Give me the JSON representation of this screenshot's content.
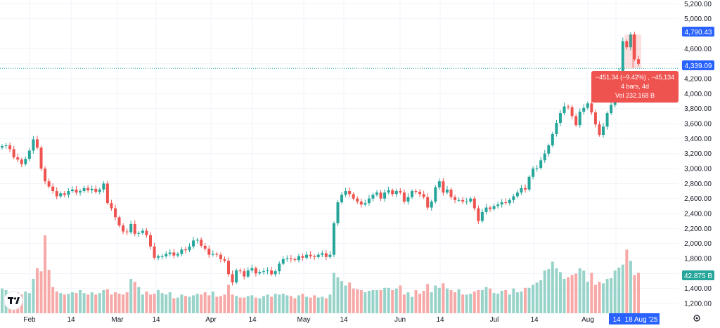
{
  "chart_data": {
    "type": "candlestick",
    "y_ticks": [
      "1,200.00",
      "1,400.00",
      "1,600.00",
      "1,800.00",
      "2,000.00",
      "2,200.00",
      "2,400.00",
      "2,600.00",
      "2,800.00",
      "3,000.00",
      "3,200.00",
      "3,400.00",
      "3,600.00",
      "3,800.00",
      "4,000.00",
      "4,200.00",
      "4,400.00",
      "4,600.00",
      "5,000.00",
      "5,200.00"
    ],
    "ylim": [
      1050,
      5250
    ],
    "x_ticks": [
      "Feb",
      "14",
      "Mar",
      "14",
      "Apr",
      "14",
      "May",
      "14",
      "Jun",
      "14",
      "Jul",
      "14",
      "Aug",
      "14"
    ],
    "close_series": [
      3300,
      3310,
      3260,
      3150,
      3120,
      3060,
      3130,
      3240,
      3390,
      3280,
      3000,
      2830,
      2760,
      2700,
      2630,
      2670,
      2650,
      2700,
      2720,
      2680,
      2700,
      2740,
      2710,
      2730,
      2690,
      2720,
      2800,
      2540,
      2470,
      2350,
      2240,
      2160,
      2150,
      2260,
      2130,
      2140,
      2170,
      2110,
      1960,
      1810,
      1830,
      1830,
      1860,
      1880,
      1840,
      1860,
      1920,
      1910,
      1960,
      2040,
      2050,
      1970,
      1930,
      1850,
      1860,
      1850,
      1790,
      1770,
      1590,
      1480,
      1640,
      1630,
      1560,
      1640,
      1670,
      1600,
      1620,
      1630,
      1640,
      1590,
      1630,
      1730,
      1790,
      1800,
      1790,
      1780,
      1830,
      1810,
      1850,
      1830,
      1820,
      1850,
      1870,
      1820,
      1850,
      2270,
      2550,
      2650,
      2700,
      2660,
      2600,
      2560,
      2520,
      2540,
      2600,
      2650,
      2680,
      2600,
      2680,
      2710,
      2660,
      2700,
      2680,
      2560,
      2620,
      2700,
      2690,
      2660,
      2620,
      2480,
      2560,
      2750,
      2830,
      2680,
      2720,
      2620,
      2580,
      2580,
      2560,
      2560,
      2600,
      2470,
      2300,
      2420,
      2480,
      2460,
      2500,
      2520,
      2550,
      2540,
      2580,
      2630,
      2680,
      2740,
      2720,
      2890,
      3000,
      3010,
      3110,
      3200,
      3310,
      3460,
      3610,
      3740,
      3830,
      3820,
      3700,
      3580,
      3760,
      3810,
      3870,
      3750,
      3590,
      3450,
      3560,
      3740,
      3850,
      4150,
      4300,
      4700,
      4620,
      4790,
      4460,
      4400
    ],
    "volume_series": [
      1380,
      1360,
      1300,
      1310,
      1330,
      1300,
      1340,
      1320,
      1510,
      1650,
      1610,
      2090,
      1630,
      1400,
      1340,
      1320,
      1300,
      1310,
      1330,
      1320,
      1360,
      1320,
      1300,
      1330,
      1300,
      1320,
      1360,
      1370,
      1300,
      1330,
      1310,
      1300,
      1330,
      1510,
      1470,
      1400,
      1300,
      1340,
      1300,
      1310,
      1360,
      1320,
      1300,
      1330,
      1250,
      1260,
      1300,
      1280,
      1270,
      1290,
      1310,
      1300,
      1330,
      1290,
      1340,
      1270,
      1280,
      1300,
      1430,
      1300,
      1280,
      1260,
      1260,
      1280,
      1290,
      1260,
      1250,
      1280,
      1300,
      1270,
      1310,
      1300,
      1310,
      1290,
      1280,
      1250,
      1290,
      1310,
      1270,
      1260,
      1290,
      1260,
      1270,
      1250,
      1300,
      1590,
      1530,
      1480,
      1420,
      1460,
      1380,
      1370,
      1360,
      1330,
      1350,
      1360,
      1360,
      1360,
      1390,
      1390,
      1360,
      1380,
      1420,
      1300,
      1330,
      1270,
      1360,
      1310,
      1350,
      1440,
      1330,
      1420,
      1390,
      1450,
      1380,
      1360,
      1330,
      1370,
      1300,
      1300,
      1310,
      1340,
      1360,
      1360,
      1400,
      1380,
      1320,
      1310,
      1350,
      1360,
      1300,
      1380,
      1330,
      1340,
      1390,
      1390,
      1430,
      1460,
      1490,
      1620,
      1640,
      1740,
      1650,
      1600,
      1510,
      1530,
      1560,
      1580,
      1650,
      1620,
      1470,
      1590,
      1430,
      1470,
      1450,
      1510,
      1520,
      1620,
      1660,
      1700,
      1900,
      1750,
      1560,
      1590
    ]
  },
  "price_axis": {
    "last_label": "4,790.43",
    "current_label": "4,339.09",
    "volume_label": "42.875 B"
  },
  "time_axis": {
    "highlight_left": "14",
    "highlight_right": "18 Aug '25"
  },
  "measure_tooltip": {
    "line1": "−451.34 (−9.42%) , −45,134",
    "line2": "4 bars, 4d",
    "line3": "Vol 232.168 B"
  },
  "icons": {
    "logo": "tradingview-logo-icon",
    "settings": "settings-icon"
  },
  "colors": {
    "up": "#26a69a",
    "down": "#ef5350",
    "badge_blue": "#2962ff",
    "badge_teal": "#26a69a",
    "tooltip": "#ef5350"
  }
}
